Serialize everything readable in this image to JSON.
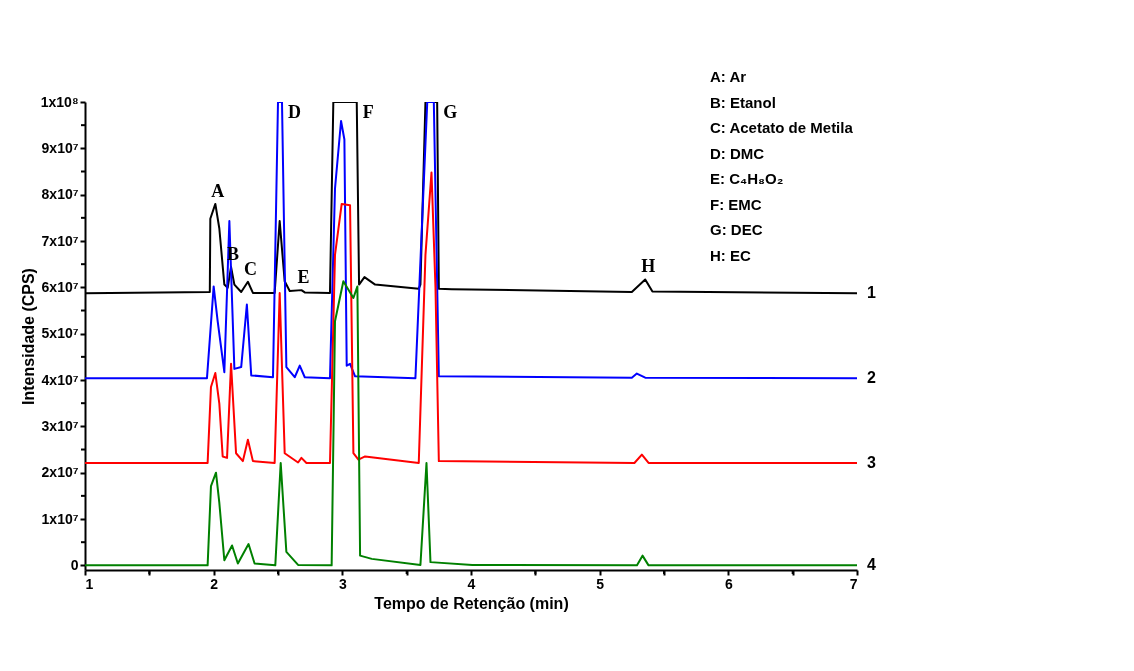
{
  "chart_data": {
    "type": "line",
    "xlabel": "Tempo de Retenção (min)",
    "ylabel": "Intensidade (CPS)",
    "xlim": [
      1,
      7
    ],
    "ylim": [
      -1000000.0,
      100000000.0
    ],
    "xticks": [
      1,
      {
        "value": 1.5,
        "label": null
      },
      2,
      {
        "value": 2.5,
        "label": null
      },
      3,
      {
        "value": 3.5,
        "label": null
      },
      4,
      {
        "value": 4.5,
        "label": null
      },
      5,
      {
        "value": 5.5,
        "label": null
      },
      6,
      {
        "value": 6.5,
        "label": null
      },
      7
    ],
    "yticks": [
      0,
      {
        "value": 5000000.0,
        "label": null
      },
      {
        "value": 10000000.0,
        "label": "1x10⁷"
      },
      {
        "value": 15000000.0,
        "label": null
      },
      {
        "value": 20000000.0,
        "label": "2x10⁷"
      },
      {
        "value": 25000000.0,
        "label": null
      },
      {
        "value": 30000000.0,
        "label": "3x10⁷"
      },
      {
        "value": 35000000.0,
        "label": null
      },
      {
        "value": 40000000.0,
        "label": "4x10⁷"
      },
      {
        "value": 45000000.0,
        "label": null
      },
      {
        "value": 50000000.0,
        "label": "5x10⁷"
      },
      {
        "value": 55000000.0,
        "label": null
      },
      {
        "value": 60000000.0,
        "label": "6x10⁷"
      },
      {
        "value": 65000000.0,
        "label": null
      },
      {
        "value": 70000000.0,
        "label": "7x10⁷"
      },
      {
        "value": 75000000.0,
        "label": null
      },
      {
        "value": 80000000.0,
        "label": "8x10⁷"
      },
      {
        "value": 85000000.0,
        "label": null
      },
      {
        "value": 90000000.0,
        "label": "9x10⁷"
      },
      {
        "value": 95000000.0,
        "label": null
      },
      {
        "value": 100000000.0,
        "label": "1x10⁸"
      }
    ],
    "grid": false,
    "legend": false,
    "line_style": "solid",
    "series": [
      {
        "name": "1",
        "color": "#000000",
        "x": [
          1,
          1.97,
          1.974,
          2.013,
          2.044,
          2.083,
          2.109,
          2.135,
          2.161,
          2.214,
          2.266,
          2.305,
          2.474,
          2.513,
          2.552,
          2.591,
          2.682,
          2.708,
          2.904,
          2.93,
          3.112,
          3.13,
          3.172,
          3.255,
          3.594,
          3.607,
          3.646,
          3.737,
          3.75,
          3.85,
          5.25,
          5.354,
          5.41,
          7
        ],
        "values": [
          58700000.0,
          59000000.0,
          74800000.0,
          78000000.0,
          72700000.0,
          60600000.0,
          59900000.0,
          64400000.0,
          60600000.0,
          59000000.0,
          61200000.0,
          58800000.0,
          58800000.0,
          74300000.0,
          61300000.0,
          59200000.0,
          59400000.0,
          58900000.0,
          58800000.0,
          100000000.0,
          100000000.0,
          60600000.0,
          62200000.0,
          60600000.0,
          59700000.0,
          60600000.0,
          100000000.0,
          100000000.0,
          59700000.0,
          59600000.0,
          59000000.0,
          61700000.0,
          59100000.0,
          58700000.0
        ]
      },
      {
        "name": "2",
        "color": "#0000ff",
        "x": [
          1,
          1.948,
          2.0,
          2.031,
          2.083,
          2.122,
          2.161,
          2.214,
          2.258,
          2.292,
          2.461,
          2.5,
          2.531,
          2.565,
          2.63,
          2.669,
          2.708,
          2.904,
          2.943,
          2.99,
          3.016,
          3.034,
          3.06,
          3.099,
          3.568,
          3.66,
          3.711,
          3.75,
          5.25,
          5.289,
          5.354,
          7
        ],
        "values": [
          40400000.0,
          40400000.0,
          60200000.0,
          52700000.0,
          41700000.0,
          74300000.0,
          42400000.0,
          42800000.0,
          56300000.0,
          41000000.0,
          40600000.0,
          100000000.0,
          100000000.0,
          42800000.0,
          40600000.0,
          43100000.0,
          40600000.0,
          40400000.0,
          81300000.0,
          95900000.0,
          91900000.0,
          43100000.0,
          43500000.0,
          40800000.0,
          40400000.0,
          100000000.0,
          100000000.0,
          40800000.0,
          40500000.0,
          41400000.0,
          40500000.0,
          40400000.0
        ]
      },
      {
        "name": "3",
        "color": "#ff0000",
        "x": [
          1,
          1.953,
          1.979,
          2.013,
          2.044,
          2.07,
          2.104,
          2.135,
          2.174,
          2.227,
          2.266,
          2.305,
          2.474,
          2.513,
          2.552,
          2.656,
          2.682,
          2.721,
          2.904,
          2.943,
          2.995,
          3.06,
          3.086,
          3.125,
          3.177,
          3.594,
          3.646,
          3.693,
          3.724,
          3.75,
          5.27,
          5.328,
          5.38,
          7
        ],
        "values": [
          22100000.0,
          22100000.0,
          38500000.0,
          41500000.0,
          34900000.0,
          23500000.0,
          23200000.0,
          43500000.0,
          24200000.0,
          22500000.0,
          27100000.0,
          22500000.0,
          22100000.0,
          58800000.0,
          24200000.0,
          22200000.0,
          23200000.0,
          22100000.0,
          22100000.0,
          67000000.0,
          78000000.0,
          77700000.0,
          24200000.0,
          22800000.0,
          23500000.0,
          22100000.0,
          67000000.0,
          84800000.0,
          59900000.0,
          22500000.0,
          22100000.0,
          23900000.0,
          22100000.0,
          22100000.0
        ]
      },
      {
        "name": "4",
        "color": "#008000",
        "x": [
          1,
          1.953,
          1.979,
          2.018,
          2.044,
          2.083,
          2.143,
          2.188,
          2.271,
          2.318,
          2.479,
          2.521,
          2.565,
          2.656,
          2.917,
          2.943,
          3.008,
          3.086,
          3.117,
          3.138,
          3.229,
          3.607,
          3.654,
          3.685,
          4.01,
          5.29,
          5.333,
          5.38,
          7
        ],
        "values": [
          0,
          0,
          17100000.0,
          20000000.0,
          13500000.0,
          1100000.0,
          4300000.0,
          400000.0,
          4600000.0,
          400000.0,
          0,
          22100000.0,
          2900000.0,
          100000.0,
          0,
          52700000.0,
          61300000.0,
          57700000.0,
          60200000.0,
          2100000.0,
          1400000.0,
          100000.0,
          22100000.0,
          700000.0,
          100000.0,
          0,
          2100000.0,
          0,
          0
        ]
      }
    ],
    "annotations": [
      {
        "text": "A",
        "x": 2.013,
        "y": 78000000.0
      },
      {
        "text": "B",
        "x": 2.135,
        "y": 64400000.0
      },
      {
        "text": "C",
        "x": 2.266,
        "y": 61200000.0
      },
      {
        "text": "D",
        "x": 2.531,
        "y": 100000000.0
      },
      {
        "text": "E",
        "x": 2.682,
        "y": 59400000.0
      },
      {
        "text": "F",
        "x": 3.112,
        "y": 100000000.0
      },
      {
        "text": "G",
        "x": 3.737,
        "y": 100000000.0
      },
      {
        "text": "H",
        "x": 5.354,
        "y": 61700000.0
      },
      "A: Ar",
      "B: Etanol",
      "C: Acetato de Metila",
      "D: DMC",
      "E: C₄H₈O₂",
      "F: EMC",
      "G: DEC",
      "H: EC"
    ]
  }
}
